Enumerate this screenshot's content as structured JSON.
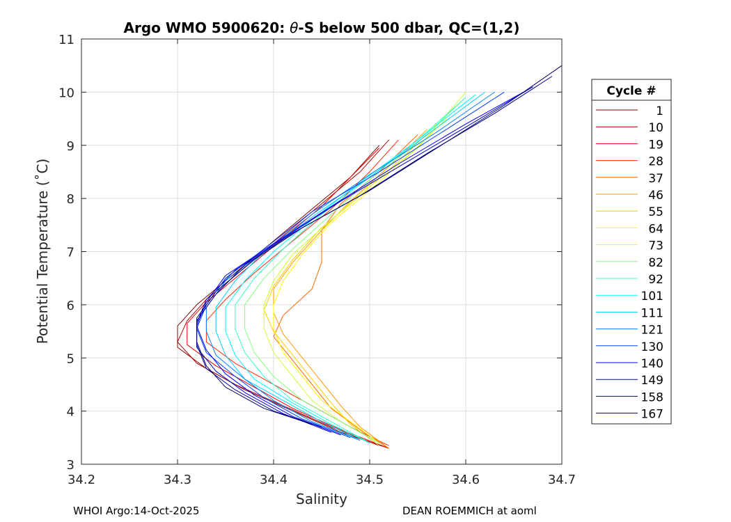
{
  "chart_data": {
    "type": "line",
    "title": "Argo WMO 5900620: θ-S below 500 dbar,  QC=(1,2)",
    "title_prefix": "Argo WMO 5900620: ",
    "title_theta": "θ",
    "title_suffix": "-S below 500 dbar,  QC=(1,2)",
    "xlabel": "Salinity",
    "ylabel": "Potential Temperature (˚C)",
    "xlim": [
      34.2,
      34.7
    ],
    "ylim": [
      3,
      11
    ],
    "xticks": [
      "34.2",
      "34.3",
      "34.4",
      "34.5",
      "34.6",
      "34.7"
    ],
    "yticks": [
      "3",
      "4",
      "5",
      "6",
      "7",
      "8",
      "9",
      "10",
      "11"
    ],
    "grid": true,
    "legend": {
      "title": "Cycle #",
      "position": "right",
      "entries": [
        "1",
        "10",
        "19",
        "28",
        "37",
        "46",
        "55",
        "64",
        "73",
        "82",
        "92",
        "101",
        "111",
        "121",
        "130",
        "140",
        "149",
        "158",
        "167"
      ],
      "colors": [
        "#800000",
        "#b30000",
        "#e60000",
        "#ff2a00",
        "#ff6600",
        "#ff9900",
        "#ffcc00",
        "#ffff00",
        "#ccff33",
        "#80ff80",
        "#33ffcc",
        "#00ffff",
        "#00ccff",
        "#0080ff",
        "#0040ff",
        "#0000ff",
        "#0000cc",
        "#000099",
        "#000066"
      ]
    },
    "series_style": "one θ-S profile per cycle, colored by cycle number (jet colormap); profiles run from ~3.3 °C at S≈34.52 up through a salinity minimum near S≈34.30–34.38 at θ≈5.5 °C, then up to ~9–10.5 °C at S≈34.50–34.70",
    "series": [
      {
        "name": "1",
        "color": "#800000",
        "points": [
          [
            34.52,
            3.3
          ],
          [
            34.47,
            3.6
          ],
          [
            34.42,
            4.0
          ],
          [
            34.37,
            4.4
          ],
          [
            34.33,
            4.8
          ],
          [
            34.3,
            5.2
          ],
          [
            34.3,
            5.6
          ],
          [
            34.32,
            6.0
          ],
          [
            34.36,
            6.6
          ],
          [
            34.4,
            7.2
          ],
          [
            34.44,
            7.8
          ],
          [
            34.48,
            8.4
          ],
          [
            34.51,
            9.0
          ]
        ]
      },
      {
        "name": "10",
        "color": "#b30000",
        "points": [
          [
            34.51,
            3.35
          ],
          [
            34.46,
            3.7
          ],
          [
            34.41,
            4.1
          ],
          [
            34.36,
            4.5
          ],
          [
            34.32,
            4.9
          ],
          [
            34.3,
            5.3
          ],
          [
            34.31,
            5.7
          ],
          [
            34.33,
            6.1
          ],
          [
            34.37,
            6.7
          ],
          [
            34.41,
            7.3
          ],
          [
            34.45,
            7.9
          ],
          [
            34.49,
            8.5
          ],
          [
            34.52,
            9.1
          ]
        ]
      },
      {
        "name": "19",
        "color": "#e60000",
        "points": [
          [
            34.52,
            3.3
          ],
          [
            34.47,
            3.65
          ],
          [
            34.42,
            4.05
          ],
          [
            34.38,
            4.45
          ],
          [
            34.34,
            4.85
          ],
          [
            34.31,
            5.25
          ],
          [
            34.31,
            5.65
          ],
          [
            34.33,
            6.05
          ],
          [
            34.37,
            6.65
          ],
          [
            34.41,
            7.25
          ],
          [
            34.45,
            7.85
          ],
          [
            34.48,
            8.4
          ],
          [
            34.51,
            8.95
          ]
        ]
      },
      {
        "name": "28",
        "color": "#ff2a00",
        "points": [
          [
            34.52,
            3.35
          ],
          [
            34.48,
            3.7
          ],
          [
            34.44,
            4.1
          ],
          [
            34.4,
            4.5
          ],
          [
            34.36,
            4.9
          ],
          [
            34.33,
            5.3
          ],
          [
            34.33,
            5.7
          ],
          [
            34.35,
            6.1
          ],
          [
            34.38,
            6.6
          ],
          [
            34.42,
            7.2
          ],
          [
            34.46,
            7.8
          ],
          [
            34.5,
            8.5
          ],
          [
            34.53,
            9.1
          ]
        ]
      },
      {
        "name": "37",
        "color": "#ff6600",
        "points": [
          [
            34.52,
            3.3
          ],
          [
            34.49,
            3.65
          ],
          [
            34.46,
            4.05
          ],
          [
            34.44,
            4.5
          ],
          [
            34.42,
            4.95
          ],
          [
            34.4,
            5.4
          ],
          [
            34.41,
            5.8
          ],
          [
            34.44,
            6.3
          ],
          [
            34.45,
            6.8
          ],
          [
            34.45,
            7.4
          ],
          [
            34.47,
            7.9
          ],
          [
            34.51,
            8.5
          ],
          [
            34.55,
            9.2
          ]
        ]
      },
      {
        "name": "46",
        "color": "#ff9900",
        "points": [
          [
            34.52,
            3.3
          ],
          [
            34.49,
            3.7
          ],
          [
            34.47,
            4.1
          ],
          [
            34.45,
            4.55
          ],
          [
            34.43,
            5.0
          ],
          [
            34.41,
            5.45
          ],
          [
            34.4,
            5.85
          ],
          [
            34.4,
            6.3
          ],
          [
            34.42,
            6.8
          ],
          [
            34.45,
            7.4
          ],
          [
            34.48,
            7.95
          ],
          [
            34.52,
            8.6
          ],
          [
            34.56,
            9.3
          ]
        ]
      },
      {
        "name": "55",
        "color": "#ffcc00",
        "points": [
          [
            34.51,
            3.35
          ],
          [
            34.48,
            3.75
          ],
          [
            34.46,
            4.15
          ],
          [
            34.44,
            4.6
          ],
          [
            34.42,
            5.05
          ],
          [
            34.4,
            5.5
          ],
          [
            34.39,
            5.9
          ],
          [
            34.4,
            6.35
          ],
          [
            34.42,
            6.85
          ],
          [
            34.45,
            7.45
          ],
          [
            34.49,
            8.05
          ],
          [
            34.53,
            8.7
          ],
          [
            34.57,
            9.4
          ]
        ]
      },
      {
        "name": "64",
        "color": "#ffff00",
        "points": [
          [
            34.51,
            3.4
          ],
          [
            34.48,
            3.8
          ],
          [
            34.45,
            4.2
          ],
          [
            34.43,
            4.65
          ],
          [
            34.41,
            5.1
          ],
          [
            34.4,
            5.55
          ],
          [
            34.4,
            6.0
          ],
          [
            34.41,
            6.45
          ],
          [
            34.43,
            6.95
          ],
          [
            34.46,
            7.55
          ],
          [
            34.5,
            8.15
          ],
          [
            34.54,
            8.8
          ],
          [
            34.58,
            9.5
          ]
        ]
      },
      {
        "name": "73",
        "color": "#ccff33",
        "points": [
          [
            34.51,
            3.4
          ],
          [
            34.47,
            3.8
          ],
          [
            34.44,
            4.2
          ],
          [
            34.42,
            4.65
          ],
          [
            34.4,
            5.1
          ],
          [
            34.39,
            5.55
          ],
          [
            34.39,
            6.0
          ],
          [
            34.4,
            6.45
          ],
          [
            34.42,
            6.95
          ],
          [
            34.46,
            7.6
          ],
          [
            34.5,
            8.25
          ],
          [
            34.55,
            8.95
          ],
          [
            34.6,
            10.0
          ]
        ]
      },
      {
        "name": "82",
        "color": "#80ff80",
        "points": [
          [
            34.51,
            3.4
          ],
          [
            34.47,
            3.8
          ],
          [
            34.43,
            4.2
          ],
          [
            34.4,
            4.65
          ],
          [
            34.38,
            5.1
          ],
          [
            34.37,
            5.55
          ],
          [
            34.37,
            6.0
          ],
          [
            34.39,
            6.5
          ],
          [
            34.42,
            7.05
          ],
          [
            34.46,
            7.7
          ],
          [
            34.5,
            8.35
          ],
          [
            34.55,
            9.05
          ],
          [
            34.6,
            9.9
          ]
        ]
      },
      {
        "name": "92",
        "color": "#33ffcc",
        "points": [
          [
            34.5,
            3.4
          ],
          [
            34.46,
            3.8
          ],
          [
            34.42,
            4.2
          ],
          [
            34.39,
            4.65
          ],
          [
            34.37,
            5.1
          ],
          [
            34.36,
            5.55
          ],
          [
            34.36,
            6.0
          ],
          [
            34.38,
            6.5
          ],
          [
            34.41,
            7.05
          ],
          [
            34.45,
            7.7
          ],
          [
            34.5,
            8.4
          ],
          [
            34.55,
            9.1
          ],
          [
            34.6,
            9.9
          ]
        ]
      },
      {
        "name": "101",
        "color": "#00ffff",
        "points": [
          [
            34.5,
            3.4
          ],
          [
            34.46,
            3.75
          ],
          [
            34.42,
            4.15
          ],
          [
            34.38,
            4.6
          ],
          [
            34.36,
            5.05
          ],
          [
            34.35,
            5.5
          ],
          [
            34.35,
            5.95
          ],
          [
            34.37,
            6.45
          ],
          [
            34.4,
            7.0
          ],
          [
            34.44,
            7.6
          ],
          [
            34.49,
            8.3
          ],
          [
            34.55,
            9.1
          ],
          [
            34.61,
            9.95
          ]
        ]
      },
      {
        "name": "111",
        "color": "#00ccff",
        "points": [
          [
            34.49,
            3.45
          ],
          [
            34.45,
            3.8
          ],
          [
            34.41,
            4.2
          ],
          [
            34.37,
            4.6
          ],
          [
            34.35,
            5.05
          ],
          [
            34.34,
            5.5
          ],
          [
            34.34,
            5.95
          ],
          [
            34.36,
            6.45
          ],
          [
            34.39,
            7.0
          ],
          [
            34.44,
            7.65
          ],
          [
            34.5,
            8.4
          ],
          [
            34.56,
            9.2
          ],
          [
            34.62,
            10.0
          ]
        ]
      },
      {
        "name": "121",
        "color": "#0080ff",
        "points": [
          [
            34.49,
            3.45
          ],
          [
            34.44,
            3.8
          ],
          [
            34.4,
            4.2
          ],
          [
            34.37,
            4.6
          ],
          [
            34.34,
            5.05
          ],
          [
            34.33,
            5.5
          ],
          [
            34.33,
            5.95
          ],
          [
            34.35,
            6.45
          ],
          [
            34.39,
            7.0
          ],
          [
            34.44,
            7.7
          ],
          [
            34.5,
            8.45
          ],
          [
            34.57,
            9.25
          ],
          [
            34.63,
            10.0
          ]
        ]
      },
      {
        "name": "130",
        "color": "#0040ff",
        "points": [
          [
            34.48,
            3.5
          ],
          [
            34.43,
            3.85
          ],
          [
            34.39,
            4.25
          ],
          [
            34.36,
            4.65
          ],
          [
            34.33,
            5.1
          ],
          [
            34.32,
            5.55
          ],
          [
            34.33,
            6.0
          ],
          [
            34.35,
            6.5
          ],
          [
            34.39,
            7.05
          ],
          [
            34.44,
            7.75
          ],
          [
            34.51,
            8.5
          ],
          [
            34.58,
            9.3
          ],
          [
            34.64,
            10.0
          ]
        ]
      },
      {
        "name": "140",
        "color": "#0000ff",
        "points": [
          [
            34.47,
            3.55
          ],
          [
            34.42,
            3.9
          ],
          [
            34.38,
            4.3
          ],
          [
            34.35,
            4.7
          ],
          [
            34.33,
            5.15
          ],
          [
            34.32,
            5.6
          ],
          [
            34.33,
            6.05
          ],
          [
            34.35,
            6.55
          ],
          [
            34.4,
            7.15
          ],
          [
            34.46,
            7.85
          ],
          [
            34.53,
            8.65
          ],
          [
            34.6,
            9.4
          ],
          [
            34.66,
            10.0
          ]
        ]
      },
      {
        "name": "149",
        "color": "#0000cc",
        "points": [
          [
            34.46,
            3.6
          ],
          [
            34.41,
            3.95
          ],
          [
            34.37,
            4.35
          ],
          [
            34.34,
            4.75
          ],
          [
            34.32,
            5.2
          ],
          [
            34.32,
            5.65
          ],
          [
            34.33,
            6.1
          ],
          [
            34.36,
            6.65
          ],
          [
            34.41,
            7.25
          ],
          [
            34.47,
            7.95
          ],
          [
            34.54,
            8.7
          ],
          [
            34.61,
            9.45
          ],
          [
            34.67,
            10.1
          ]
        ]
      },
      {
        "name": "158",
        "color": "#000099",
        "points": [
          [
            34.45,
            3.7
          ],
          [
            34.4,
            4.0
          ],
          [
            34.36,
            4.4
          ],
          [
            34.33,
            4.8
          ],
          [
            34.32,
            5.25
          ],
          [
            34.32,
            5.7
          ],
          [
            34.34,
            6.2
          ],
          [
            34.37,
            6.75
          ],
          [
            34.42,
            7.35
          ],
          [
            34.49,
            8.05
          ],
          [
            34.56,
            8.85
          ],
          [
            34.63,
            9.6
          ],
          [
            34.69,
            10.3
          ]
        ]
      },
      {
        "name": "167",
        "color": "#000066",
        "points": [
          [
            34.44,
            3.75
          ],
          [
            34.39,
            4.05
          ],
          [
            34.35,
            4.45
          ],
          [
            34.33,
            4.85
          ],
          [
            34.32,
            5.3
          ],
          [
            34.32,
            5.75
          ],
          [
            34.34,
            6.25
          ],
          [
            34.38,
            6.85
          ],
          [
            34.43,
            7.45
          ],
          [
            34.5,
            8.15
          ],
          [
            34.57,
            8.95
          ],
          [
            34.64,
            9.75
          ],
          [
            34.7,
            10.5
          ]
        ]
      }
    ]
  },
  "footer": {
    "left": "WHOI Argo:14-Oct-2025",
    "right": "DEAN ROEMMICH at aoml"
  }
}
